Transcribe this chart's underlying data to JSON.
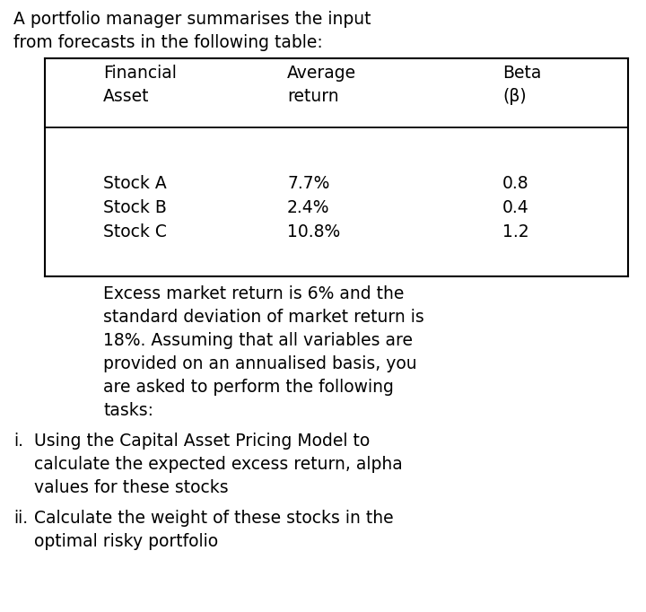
{
  "title_line1": "A portfolio manager summarises the input",
  "title_line2": "from forecasts in the following table:",
  "stocks": [
    "Stock A",
    "Stock B",
    "Stock C"
  ],
  "avg_returns": [
    "7.7%",
    "2.4%",
    "10.8%"
  ],
  "betas": [
    "0.8",
    "0.4",
    "1.2"
  ],
  "para_lines": [
    "Excess market return is 6% and the",
    "standard deviation of market return is",
    "18%. Assuming that all variables are",
    "provided on an annualised basis, you",
    "are asked to perform the following",
    "tasks:"
  ],
  "task_i_lines": [
    "Using the Capital Asset Pricing Model to",
    "calculate the expected excess return, alpha",
    "values for these stocks"
  ],
  "task_ii_lines": [
    "Calculate the weight of these stocks in the",
    "optimal risky portfolio"
  ],
  "bg_color": "#ffffff",
  "text_color": "#000000",
  "font_size": 13.5
}
